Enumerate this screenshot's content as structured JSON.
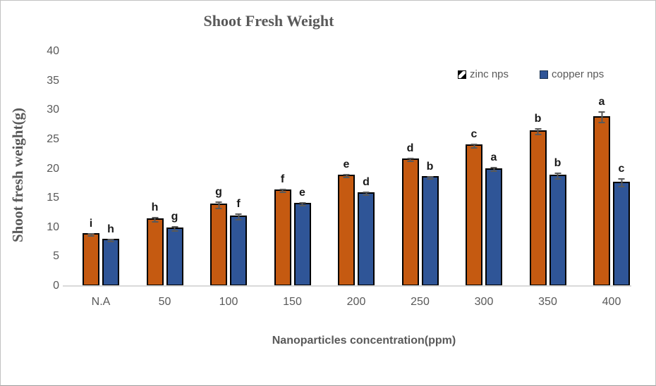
{
  "figure": {
    "background": "#ffffff",
    "border_color": "#c2c2c2"
  },
  "chart_data": {
    "type": "bar",
    "title": "Shoot Fresh Weight",
    "xlabel": "Nanoparticles concentration(ppm)",
    "ylabel": "Shoot fresh weight(g)",
    "categories": [
      "N.A",
      "50",
      "100",
      "150",
      "200",
      "250",
      "300",
      "350",
      "400"
    ],
    "yticks": [
      0,
      5,
      10,
      15,
      20,
      25,
      30,
      35,
      40
    ],
    "ylim": [
      0,
      40
    ],
    "grid": false,
    "legend_position": "top-right",
    "series": [
      {
        "name": "zinc nps",
        "color": "#C55A11",
        "border_color": "#000000",
        "values": [
          9.0,
          11.5,
          14.0,
          16.5,
          19.0,
          21.7,
          24.1,
          26.5,
          29.0
        ],
        "errors": [
          0.3,
          0.5,
          0.7,
          0.35,
          0.35,
          0.35,
          0.4,
          0.6,
          1.0
        ],
        "letters": [
          "i",
          "h",
          "g",
          "f",
          "e",
          "d",
          "c",
          "b",
          "a"
        ]
      },
      {
        "name": "copper nps",
        "color": "#2F5597",
        "border_color": "#000000",
        "values": [
          8.0,
          10.0,
          12.0,
          14.2,
          16.0,
          18.7,
          20.1,
          19.0,
          17.8
        ],
        "errors": [
          0.35,
          0.5,
          0.6,
          0.35,
          0.35,
          0.3,
          0.4,
          0.6,
          0.8
        ],
        "letters": [
          "h",
          "g",
          "f",
          "e",
          "d",
          "b",
          "a",
          "b",
          "c"
        ]
      }
    ],
    "style": {
      "error_bar_color": "#595959",
      "axis_line_color": "#d9d9d9",
      "tick_text_color": "#595959",
      "title_text_color": "#595959"
    }
  }
}
